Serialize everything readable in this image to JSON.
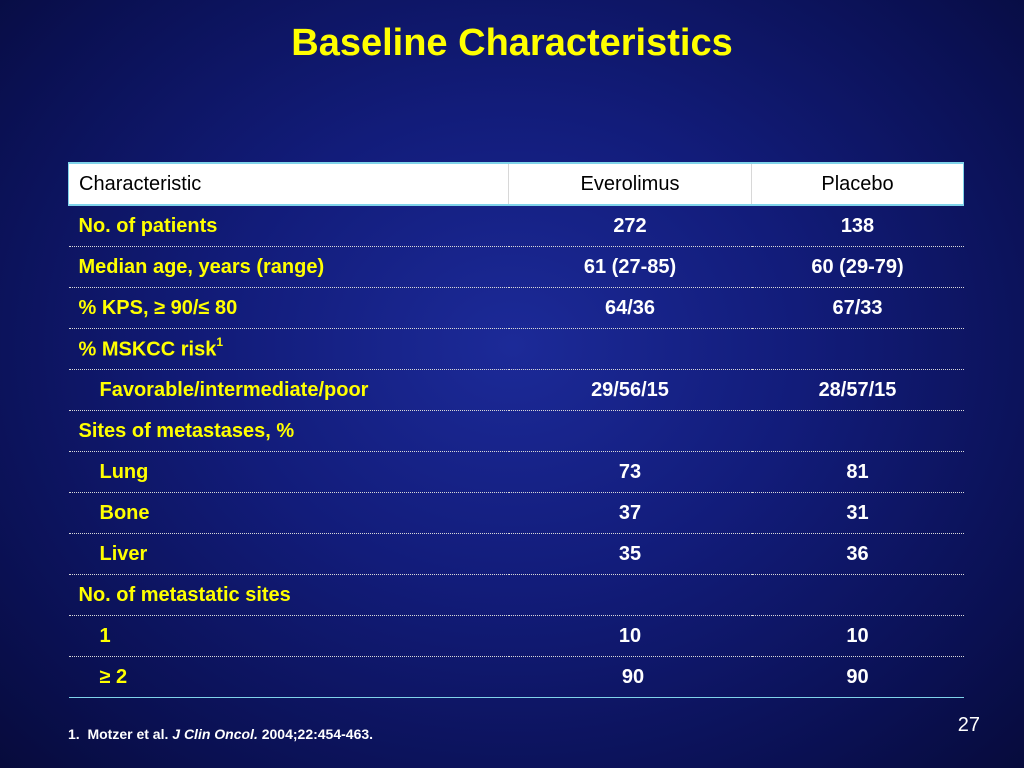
{
  "slide": {
    "title": "Baseline Characteristics",
    "page_number": "27"
  },
  "table": {
    "headers": {
      "characteristic": "Characteristic",
      "everolimus": "Everolimus",
      "placebo": "Placebo"
    },
    "rows": [
      {
        "label": "No. of patients",
        "indent": false,
        "everolimus": "272",
        "placebo": "138"
      },
      {
        "label": "Median age, years (range)",
        "indent": false,
        "everolimus": "61 (27-85)",
        "placebo": "60 (29-79)"
      },
      {
        "label": "% KPS,  ≥ 90/≤ 80",
        "indent": false,
        "everolimus": "64/36",
        "placebo": "67/33"
      },
      {
        "label": "% MSKCC risk",
        "sup": "1",
        "indent": false,
        "everolimus": "",
        "placebo": ""
      },
      {
        "label": "Favorable/intermediate/poor",
        "indent": true,
        "everolimus": "29/56/15",
        "placebo": "28/57/15"
      },
      {
        "label": "Sites of metastases, %",
        "indent": false,
        "everolimus": "",
        "placebo": ""
      },
      {
        "label": "Lung",
        "indent": true,
        "everolimus": "73",
        "placebo": "81"
      },
      {
        "label": "Bone",
        "indent": true,
        "everolimus": "37",
        "placebo": "31"
      },
      {
        "label": "Liver",
        "indent": true,
        "everolimus": "35",
        "placebo": "36"
      },
      {
        "label": "No. of metastatic sites",
        "indent": false,
        "everolimus": "",
        "placebo": ""
      },
      {
        "label": "1",
        "indent": true,
        "everolimus": "10",
        "placebo": "10"
      },
      {
        "label": "≥ 2",
        "indent": true,
        "everolimus": "90",
        "placebo": "90",
        "shift": true
      }
    ]
  },
  "footnote": {
    "number": "1.",
    "authors": "Motzer et al.",
    "journal": "J Clin Oncol.",
    "citation": "2004;22:454-463."
  },
  "colors": {
    "background": "#121c7a",
    "title": "#ffff00",
    "label_text": "#ffff00",
    "value_text": "#ffffff",
    "header_background": "#ffffff",
    "rule_accent": "#7fd3ea"
  }
}
